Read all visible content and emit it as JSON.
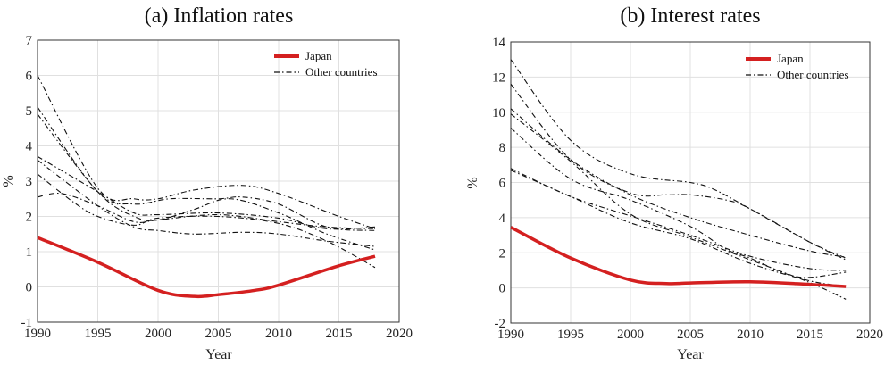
{
  "chart_data": [
    {
      "type": "line",
      "title": "(a) Inflation rates",
      "xlabel": "Year",
      "ylabel": "%",
      "xlim": [
        1990,
        2020
      ],
      "ylim": [
        -1,
        7
      ],
      "xticks": [
        1990,
        1995,
        2000,
        2005,
        2010,
        2015,
        2020
      ],
      "yticks": [
        -1,
        0,
        1,
        2,
        3,
        4,
        5,
        6,
        7
      ],
      "grid": true,
      "legend_position": "top-right",
      "legend": [
        "Japan",
        "Other countries"
      ],
      "series": [
        {
          "name": "Japan",
          "style": "solid",
          "color": "#d42020",
          "points": [
            [
              1990,
              1.4
            ],
            [
              1995,
              0.7
            ],
            [
              2000,
              -0.1
            ],
            [
              2003,
              -0.27
            ],
            [
              2005,
              -0.22
            ],
            [
              2008,
              -0.1
            ],
            [
              2010,
              0.05
            ],
            [
              2015,
              0.6
            ],
            [
              2018,
              0.87
            ]
          ]
        },
        {
          "name": "Other countries",
          "style": "dash-dot",
          "color": "#111111",
          "points": [
            [
              1990,
              6.0
            ],
            [
              1995,
              2.8
            ],
            [
              1998,
              2.5
            ],
            [
              2000,
              2.5
            ],
            [
              2003,
              2.75
            ],
            [
              2007,
              2.88
            ],
            [
              2010,
              2.65
            ],
            [
              2015,
              2.0
            ],
            [
              2018,
              1.65
            ]
          ]
        },
        {
          "name": "Other countries",
          "style": "dash-dot",
          "color": "#111111",
          "points": [
            [
              1990,
              5.1
            ],
            [
              1995,
              2.7
            ],
            [
              1998,
              2.35
            ],
            [
              2001,
              2.5
            ],
            [
              2005,
              2.5
            ],
            [
              2007,
              2.55
            ],
            [
              2010,
              2.35
            ],
            [
              2014,
              1.7
            ],
            [
              2018,
              1.6
            ]
          ]
        },
        {
          "name": "Other countries",
          "style": "dash-dot",
          "color": "#111111",
          "points": [
            [
              1990,
              4.9
            ],
            [
              1995,
              2.7
            ],
            [
              1998,
              2.0
            ],
            [
              2000,
              1.9
            ],
            [
              2003,
              2.2
            ],
            [
              2006,
              2.5
            ],
            [
              2010,
              2.1
            ],
            [
              2014,
              1.5
            ],
            [
              2018,
              1.05
            ]
          ]
        },
        {
          "name": "Other countries",
          "style": "dash-dot",
          "color": "#111111",
          "points": [
            [
              1990,
              3.7
            ],
            [
              1995,
              2.7
            ],
            [
              1998,
              2.1
            ],
            [
              2000,
              2.05
            ],
            [
              2005,
              2.1
            ],
            [
              2010,
              1.95
            ],
            [
              2014,
              1.65
            ],
            [
              2018,
              1.7
            ]
          ]
        },
        {
          "name": "Other countries",
          "style": "dash-dot",
          "color": "#111111",
          "points": [
            [
              1990,
              3.6
            ],
            [
              1995,
              2.3
            ],
            [
              1998,
              1.7
            ],
            [
              2000,
              1.6
            ],
            [
              2003,
              1.5
            ],
            [
              2007,
              1.55
            ],
            [
              2010,
              1.5
            ],
            [
              2014,
              1.3
            ],
            [
              2018,
              1.15
            ]
          ]
        },
        {
          "name": "Other countries",
          "style": "dash-dot",
          "color": "#111111",
          "points": [
            [
              1990,
              3.2
            ],
            [
              1993,
              2.4
            ],
            [
              1995,
              2.0
            ],
            [
              1998,
              1.75
            ],
            [
              2000,
              1.95
            ],
            [
              2005,
              2.0
            ],
            [
              2010,
              1.8
            ],
            [
              2014,
              1.3
            ],
            [
              2018,
              0.55
            ]
          ]
        },
        {
          "name": "Other countries",
          "style": "dash-dot",
          "color": "#111111",
          "points": [
            [
              1990,
              2.55
            ],
            [
              1992,
              2.65
            ],
            [
              1995,
              2.3
            ],
            [
              1998,
              1.85
            ],
            [
              2000,
              1.9
            ],
            [
              2005,
              2.05
            ],
            [
              2010,
              1.85
            ],
            [
              2014,
              1.7
            ],
            [
              2018,
              1.65
            ]
          ]
        }
      ]
    },
    {
      "type": "line",
      "title": "(b) Interest rates",
      "xlabel": "Year",
      "ylabel": "%",
      "xlim": [
        1990,
        2020
      ],
      "ylim": [
        -2,
        14
      ],
      "xticks": [
        1990,
        1995,
        2000,
        2005,
        2010,
        2015,
        2020
      ],
      "yticks": [
        -2,
        0,
        2,
        4,
        6,
        8,
        10,
        12,
        14
      ],
      "grid": true,
      "legend_position": "top-right",
      "legend": [
        "Japan",
        "Other countries"
      ],
      "series": [
        {
          "name": "Japan",
          "style": "solid",
          "color": "#d42020",
          "points": [
            [
              1990,
              3.45
            ],
            [
              1995,
              1.7
            ],
            [
              2000,
              0.45
            ],
            [
              2003,
              0.25
            ],
            [
              2005,
              0.28
            ],
            [
              2010,
              0.35
            ],
            [
              2015,
              0.2
            ],
            [
              2018,
              0.08
            ]
          ]
        },
        {
          "name": "Other countries",
          "style": "dash-dot",
          "color": "#111111",
          "points": [
            [
              1990,
              13.0
            ],
            [
              1995,
              8.4
            ],
            [
              2000,
              6.5
            ],
            [
              2005,
              6.0
            ],
            [
              2007,
              5.6
            ],
            [
              2010,
              4.5
            ],
            [
              2015,
              2.6
            ],
            [
              2018,
              1.7
            ]
          ]
        },
        {
          "name": "Other countries",
          "style": "dash-dot",
          "color": "#111111",
          "points": [
            [
              1990,
              11.6
            ],
            [
              1995,
              7.3
            ],
            [
              2000,
              5.4
            ],
            [
              2003,
              5.3
            ],
            [
              2005,
              5.3
            ],
            [
              2008,
              5.0
            ],
            [
              2010,
              4.5
            ],
            [
              2015,
              2.6
            ],
            [
              2018,
              1.6
            ]
          ]
        },
        {
          "name": "Other countries",
          "style": "dash-dot",
          "color": "#111111",
          "points": [
            [
              1990,
              10.2
            ],
            [
              1995,
              7.3
            ],
            [
              2000,
              5.3
            ],
            [
              2005,
              4.0
            ],
            [
              2010,
              3.0
            ],
            [
              2015,
              2.1
            ],
            [
              2018,
              1.75
            ]
          ]
        },
        {
          "name": "Other countries",
          "style": "dash-dot",
          "color": "#111111",
          "points": [
            [
              1990,
              9.9
            ],
            [
              1995,
              7.2
            ],
            [
              2000,
              4.2
            ],
            [
              2005,
              2.9
            ],
            [
              2010,
              1.6
            ],
            [
              2015,
              0.3
            ],
            [
              2018,
              -0.65
            ]
          ]
        },
        {
          "name": "Other countries",
          "style": "dash-dot",
          "color": "#111111",
          "points": [
            [
              1990,
              9.1
            ],
            [
              1995,
              6.2
            ],
            [
              2000,
              5.0
            ],
            [
              2005,
              3.5
            ],
            [
              2008,
              2.2
            ],
            [
              2010,
              1.7
            ],
            [
              2013,
              0.8
            ],
            [
              2015,
              0.6
            ],
            [
              2018,
              0.9
            ]
          ]
        },
        {
          "name": "Other countries",
          "style": "dash-dot",
          "color": "#111111",
          "points": [
            [
              1990,
              6.8
            ],
            [
              1995,
              5.2
            ],
            [
              2000,
              4.1
            ],
            [
              2005,
              3.0
            ],
            [
              2010,
              1.8
            ],
            [
              2015,
              1.1
            ],
            [
              2018,
              1.0
            ]
          ]
        },
        {
          "name": "Other countries",
          "style": "dash-dot",
          "color": "#111111",
          "points": [
            [
              1990,
              6.7
            ],
            [
              1995,
              5.2
            ],
            [
              2000,
              3.7
            ],
            [
              2005,
              2.8
            ],
            [
              2010,
              1.4
            ],
            [
              2015,
              0.4
            ],
            [
              2018,
              0.1
            ]
          ]
        }
      ]
    }
  ]
}
